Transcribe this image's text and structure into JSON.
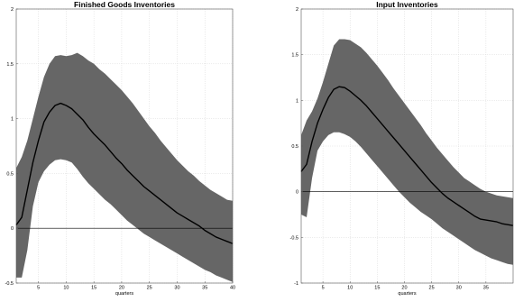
{
  "chart_data": [
    {
      "type": "area",
      "title": "Finished Goods Inventories",
      "xlabel": "quarters",
      "ylabel": "",
      "xlim": [
        1,
        40
      ],
      "ylim": [
        -0.5,
        2
      ],
      "xticks": [
        5,
        10,
        15,
        20,
        25,
        30,
        35,
        40
      ],
      "xtick_labels": [
        "5",
        "10",
        "15",
        "20",
        "25",
        "30",
        "35",
        "40"
      ],
      "yticks": [
        -0.5,
        0,
        0.5,
        1,
        1.5,
        2
      ],
      "ytick_labels": [
        "-0.5",
        "0",
        "0.5",
        "1",
        "1.5",
        "2"
      ],
      "grid": true,
      "zero_line": 0,
      "band_color": "#666666",
      "line_color": "#000000",
      "x": [
        1,
        2,
        3,
        4,
        5,
        6,
        7,
        8,
        9,
        10,
        11,
        12,
        13,
        14,
        15,
        16,
        17,
        18,
        19,
        20,
        21,
        22,
        23,
        24,
        25,
        26,
        27,
        28,
        29,
        30,
        31,
        32,
        33,
        34,
        35,
        36,
        37,
        38,
        39,
        40
      ],
      "upper": [
        0.55,
        0.65,
        0.8,
        1.0,
        1.2,
        1.38,
        1.5,
        1.57,
        1.58,
        1.57,
        1.58,
        1.6,
        1.57,
        1.53,
        1.5,
        1.45,
        1.41,
        1.36,
        1.31,
        1.26,
        1.2,
        1.14,
        1.07,
        1.0,
        0.93,
        0.87,
        0.8,
        0.74,
        0.68,
        0.62,
        0.57,
        0.52,
        0.48,
        0.43,
        0.39,
        0.35,
        0.32,
        0.29,
        0.26,
        0.25
      ],
      "median": [
        0.03,
        0.1,
        0.35,
        0.6,
        0.8,
        0.97,
        1.06,
        1.12,
        1.14,
        1.12,
        1.09,
        1.04,
        0.99,
        0.92,
        0.86,
        0.81,
        0.76,
        0.7,
        0.64,
        0.59,
        0.53,
        0.48,
        0.43,
        0.38,
        0.34,
        0.3,
        0.26,
        0.22,
        0.18,
        0.14,
        0.11,
        0.08,
        0.05,
        0.02,
        -0.02,
        -0.05,
        -0.08,
        -0.1,
        -0.12,
        -0.14
      ],
      "lower": [
        -0.45,
        -0.45,
        -0.2,
        0.2,
        0.42,
        0.52,
        0.58,
        0.62,
        0.63,
        0.62,
        0.6,
        0.54,
        0.47,
        0.41,
        0.36,
        0.31,
        0.26,
        0.22,
        0.17,
        0.12,
        0.07,
        0.03,
        -0.01,
        -0.05,
        -0.08,
        -0.11,
        -0.14,
        -0.17,
        -0.2,
        -0.23,
        -0.26,
        -0.29,
        -0.32,
        -0.35,
        -0.38,
        -0.4,
        -0.43,
        -0.45,
        -0.47,
        -0.49
      ]
    },
    {
      "type": "area",
      "title": "Input Inventories",
      "xlabel": "quarters",
      "ylabel": "",
      "xlim": [
        1,
        40
      ],
      "ylim": [
        -1,
        2
      ],
      "xticks": [
        5,
        10,
        15,
        20,
        25,
        30,
        35
      ],
      "xtick_labels": [
        "5",
        "10",
        "15",
        "20",
        "25",
        "30",
        "35"
      ],
      "yticks": [
        -1,
        -0.5,
        0,
        0.5,
        1,
        1.5,
        2
      ],
      "ytick_labels": [
        "-1",
        "-0.5",
        "0",
        "0.5",
        "1",
        "1.5",
        "2"
      ],
      "grid": true,
      "zero_line": 0,
      "band_color": "#666666",
      "line_color": "#000000",
      "x": [
        1,
        2,
        3,
        4,
        5,
        6,
        7,
        8,
        9,
        10,
        11,
        12,
        13,
        14,
        15,
        16,
        17,
        18,
        19,
        20,
        21,
        22,
        23,
        24,
        25,
        26,
        27,
        28,
        29,
        30,
        31,
        32,
        33,
        34,
        35,
        36,
        37,
        38,
        39,
        40
      ],
      "upper": [
        0.62,
        0.78,
        0.88,
        1.02,
        1.2,
        1.4,
        1.6,
        1.67,
        1.67,
        1.66,
        1.62,
        1.58,
        1.52,
        1.45,
        1.38,
        1.3,
        1.22,
        1.13,
        1.05,
        0.97,
        0.89,
        0.81,
        0.73,
        0.64,
        0.56,
        0.48,
        0.41,
        0.34,
        0.27,
        0.21,
        0.15,
        0.11,
        0.07,
        0.03,
        0.0,
        -0.02,
        -0.04,
        -0.05,
        -0.06,
        -0.07
      ],
      "median": [
        0.22,
        0.3,
        0.55,
        0.75,
        0.9,
        1.03,
        1.12,
        1.15,
        1.14,
        1.1,
        1.05,
        1.0,
        0.94,
        0.87,
        0.8,
        0.73,
        0.66,
        0.59,
        0.52,
        0.45,
        0.38,
        0.31,
        0.24,
        0.17,
        0.1,
        0.04,
        -0.02,
        -0.07,
        -0.11,
        -0.15,
        -0.19,
        -0.23,
        -0.27,
        -0.3,
        -0.31,
        -0.32,
        -0.33,
        -0.35,
        -0.36,
        -0.37
      ],
      "lower": [
        -0.25,
        -0.28,
        0.15,
        0.45,
        0.55,
        0.62,
        0.65,
        0.65,
        0.63,
        0.6,
        0.55,
        0.49,
        0.42,
        0.35,
        0.28,
        0.21,
        0.14,
        0.07,
        0.0,
        -0.06,
        -0.12,
        -0.17,
        -0.22,
        -0.26,
        -0.3,
        -0.35,
        -0.4,
        -0.44,
        -0.48,
        -0.52,
        -0.56,
        -0.6,
        -0.64,
        -0.67,
        -0.7,
        -0.73,
        -0.75,
        -0.77,
        -0.79,
        -0.8
      ]
    }
  ]
}
